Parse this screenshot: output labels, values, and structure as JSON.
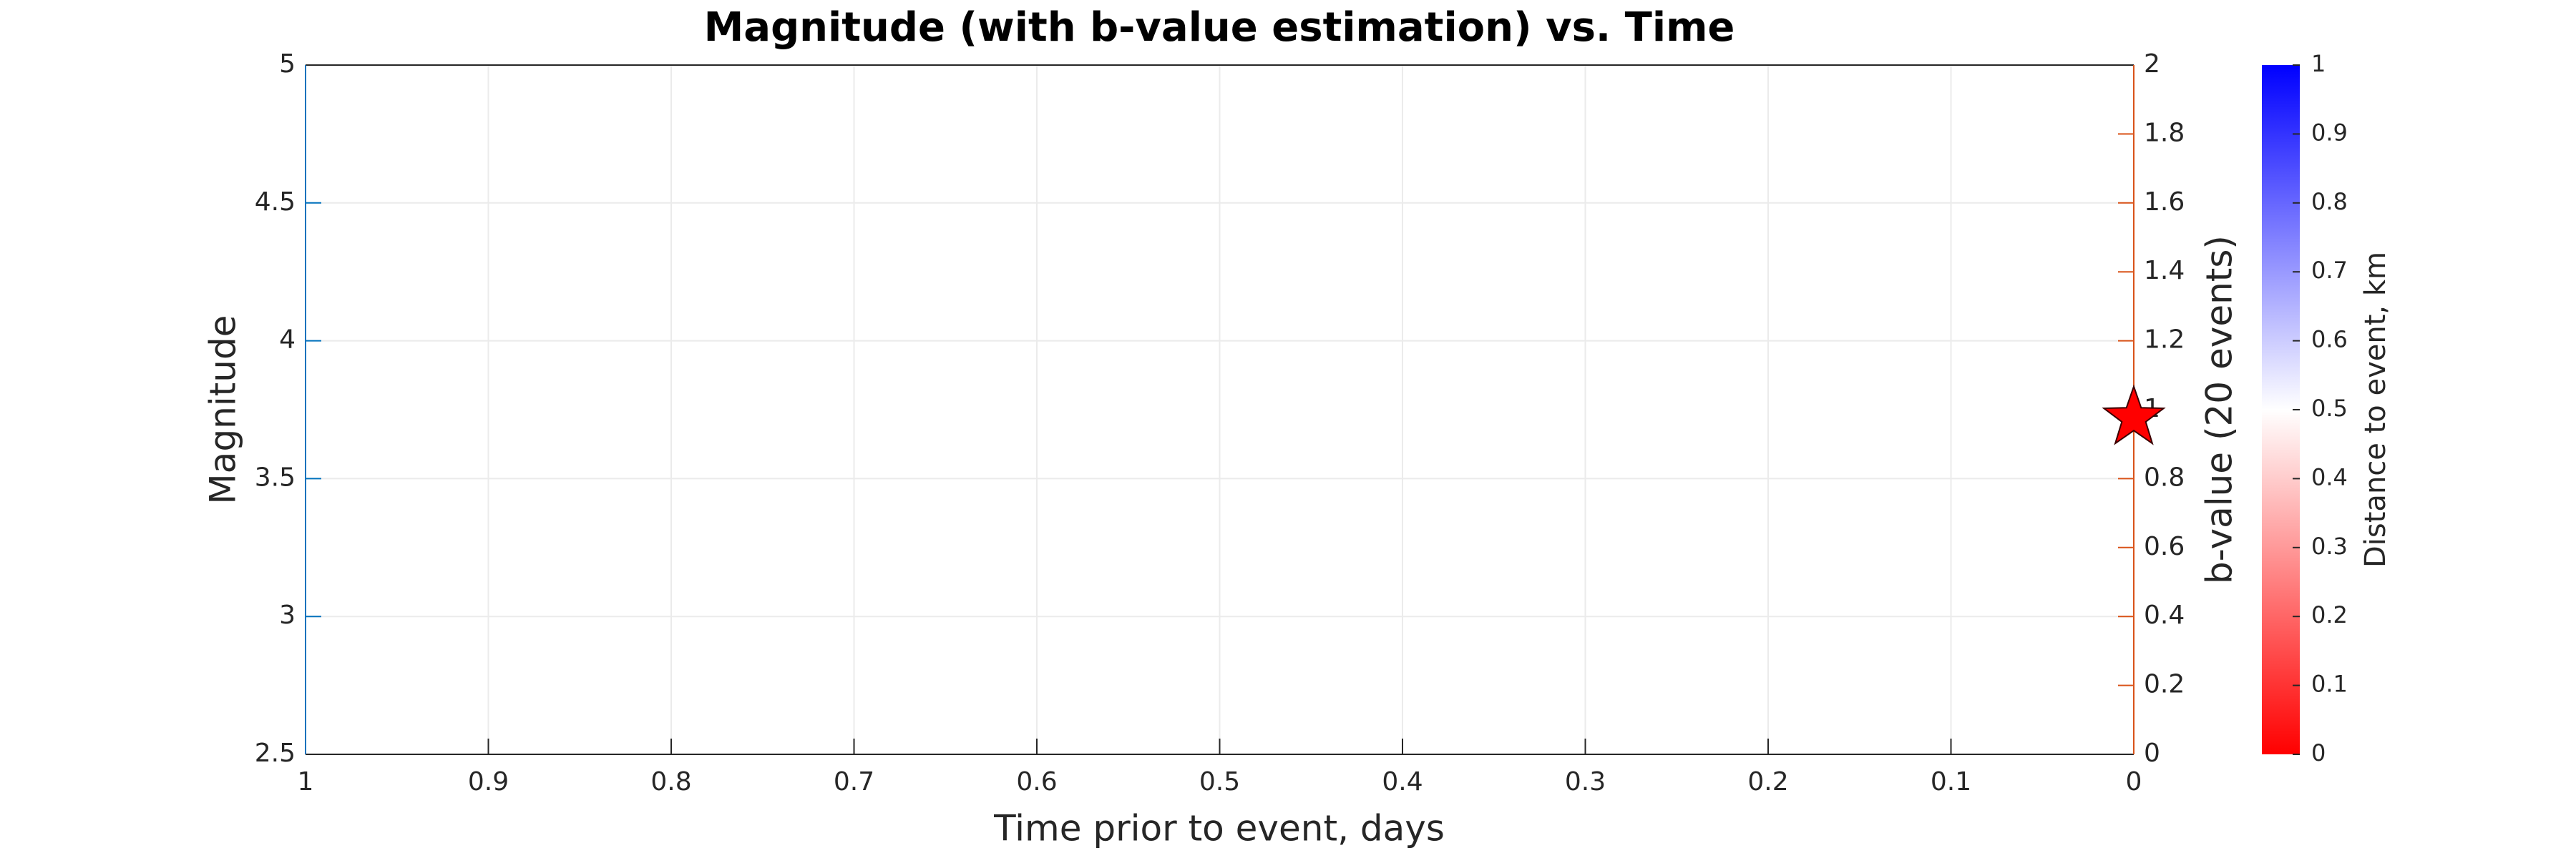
{
  "chart_data": {
    "type": "scatter",
    "title": "Magnitude (with b-value estimation) vs. Time",
    "xlabel": "Time prior to event, days",
    "ylabel": "Magnitude",
    "y2label": "b-value (20 events)",
    "x": [
      0
    ],
    "values": [
      3.72
    ],
    "color": "#ff0000",
    "marker": "star",
    "xlim": [
      1,
      0
    ],
    "xticks": [
      1,
      0.9,
      0.8,
      0.7,
      0.6,
      0.5,
      0.4,
      0.3,
      0.2,
      0.1,
      0
    ],
    "ylim": [
      2.5,
      5
    ],
    "yticks": [
      2.5,
      3,
      3.5,
      4,
      4.5,
      5
    ],
    "y2lim": [
      0,
      2
    ],
    "y2ticks": [
      0,
      0.2,
      0.4,
      0.6,
      0.8,
      1,
      1.2,
      1.4,
      1.6,
      1.8,
      2
    ],
    "grid": true,
    "ycolor": "#0072bd",
    "y2color": "#d95319",
    "colorbar": {
      "label": "Distance to event, km",
      "clim": [
        0,
        1
      ],
      "ticks": [
        0,
        0.1,
        0.2,
        0.3,
        0.4,
        0.5,
        0.6,
        0.7,
        0.8,
        0.9,
        1
      ],
      "colormap": [
        "#ff0000",
        "#ffffff",
        "#0000ff"
      ]
    }
  }
}
